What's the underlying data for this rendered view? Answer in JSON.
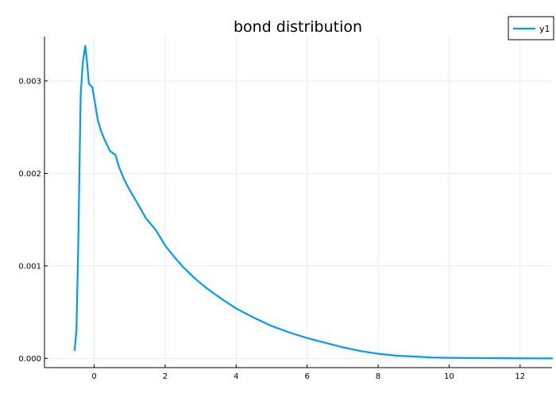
{
  "chart_data": {
    "type": "line",
    "title": "bond distribution",
    "xlabel": "",
    "ylabel": "",
    "xlim": [
      -1.4,
      12.9
    ],
    "ylim": [
      -0.0001,
      0.00348
    ],
    "xticks": [
      0,
      2,
      4,
      6,
      8,
      10,
      12
    ],
    "yticks": [
      0.0,
      0.001,
      0.002,
      0.003
    ],
    "xtick_labels": [
      "0",
      "2",
      "4",
      "6",
      "8",
      "10",
      "12"
    ],
    "ytick_labels": [
      "0.000",
      "0.001",
      "0.002",
      "0.003"
    ],
    "grid": true,
    "legend_position": "top-right",
    "series": [
      {
        "name": "y1",
        "color": "#009af9",
        "x": [
          -0.55,
          -0.5,
          -0.45,
          -0.38,
          -0.32,
          -0.25,
          -0.2,
          -0.15,
          -0.05,
          0.1,
          0.2,
          0.3,
          0.45,
          0.6,
          0.7,
          0.85,
          1.0,
          1.2,
          1.45,
          1.6,
          1.75,
          2.0,
          2.25,
          2.5,
          2.85,
          3.2,
          3.6,
          4.0,
          4.5,
          5.0,
          5.5,
          6.0,
          6.5,
          7.0,
          7.5,
          8.0,
          8.5,
          9.0,
          9.5,
          10.0,
          10.5,
          11.0,
          11.5,
          12.0,
          12.9
        ],
        "values": [
          9e-05,
          0.0003,
          0.0012,
          0.00285,
          0.0032,
          0.00338,
          0.0032,
          0.00297,
          0.00293,
          0.00258,
          0.00245,
          0.00236,
          0.00224,
          0.0022,
          0.00207,
          0.00193,
          0.00182,
          0.00169,
          0.00152,
          0.00145,
          0.00138,
          0.00122,
          0.0011,
          0.00099,
          0.00086,
          0.00075,
          0.00064,
          0.00054,
          0.00044,
          0.00035,
          0.00028,
          0.00022,
          0.00017,
          0.00012,
          8e-05,
          5e-05,
          3e-05,
          2e-05,
          1e-05,
          6e-06,
          4e-06,
          3e-06,
          2e-06,
          1e-06,
          0.0
        ]
      }
    ]
  }
}
